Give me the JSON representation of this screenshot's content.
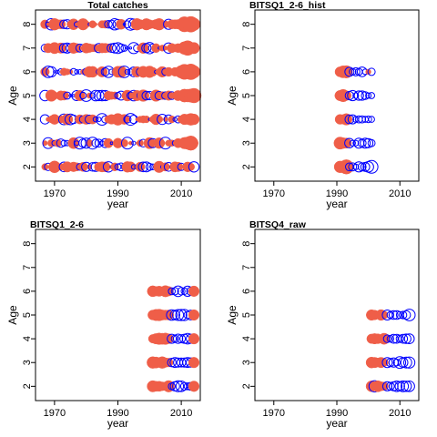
{
  "chart_data": [
    {
      "type": "scatter",
      "title": "Total catches",
      "xlabel": "year",
      "ylabel": "Age",
      "xlim": [
        1964,
        2016
      ],
      "ylim": [
        1.4,
        8.6
      ],
      "xticks": [
        1970,
        1990,
        2010
      ],
      "yticks": [
        2,
        3,
        4,
        5,
        6,
        7,
        8
      ],
      "series": [
        {
          "years": [
            1967,
            2014
          ],
          "ages": [
            2,
            3,
            4,
            5,
            6,
            7,
            8
          ],
          "pattern": "full-grid residual bubbles, positive (red filled) and negative (blue open) mixed across all years and ages"
        }
      ]
    },
    {
      "type": "scatter",
      "title": "BITSQ1_2-6_hist",
      "xlabel": "year",
      "ylabel": "Age",
      "xlim": [
        1964,
        2016
      ],
      "ylim": [
        1.4,
        8.6
      ],
      "xticks": [
        1970,
        1990,
        2010
      ],
      "yticks": [
        2,
        3,
        4,
        5,
        6,
        7,
        8
      ],
      "series": [
        {
          "years": [
            1991,
            2001
          ],
          "ages": [
            2,
            3,
            4,
            5,
            6
          ],
          "pattern": "red filled bubbles 1991-1993, blue open bubbles 1994-2001, large at age 2"
        }
      ]
    },
    {
      "type": "scatter",
      "title": "BITSQ1_2-6",
      "xlabel": "year",
      "ylabel": "Age",
      "xlim": [
        1964,
        2016
      ],
      "ylim": [
        1.4,
        8.6
      ],
      "xticks": [
        1970,
        1990,
        2010
      ],
      "yticks": [
        2,
        3,
        4,
        5,
        6,
        7,
        8
      ],
      "series": [
        {
          "years": [
            2001,
            2014
          ],
          "ages": [
            2,
            3,
            4,
            5,
            6
          ],
          "pattern": "red filled bubbles 2001-2006, blue open bubbles 2007-2013, red at 2014"
        }
      ]
    },
    {
      "type": "scatter",
      "title": "BITSQ4_raw",
      "xlabel": "year",
      "ylabel": "Age",
      "xlim": [
        1964,
        2016
      ],
      "ylim": [
        1.4,
        8.6
      ],
      "xticks": [
        1970,
        1990,
        2010
      ],
      "yticks": [
        2,
        3,
        4,
        5,
        6,
        7,
        8
      ],
      "series": [
        {
          "years": [
            2001,
            2013
          ],
          "ages": [
            2,
            3,
            4,
            5
          ],
          "pattern": "red filled bubbles 2001-2006, blue open bubbles 2006-2013"
        }
      ]
    }
  ],
  "colors": {
    "positive": "#ef5e48",
    "negative": "#0000ff",
    "axis": "#000000"
  }
}
